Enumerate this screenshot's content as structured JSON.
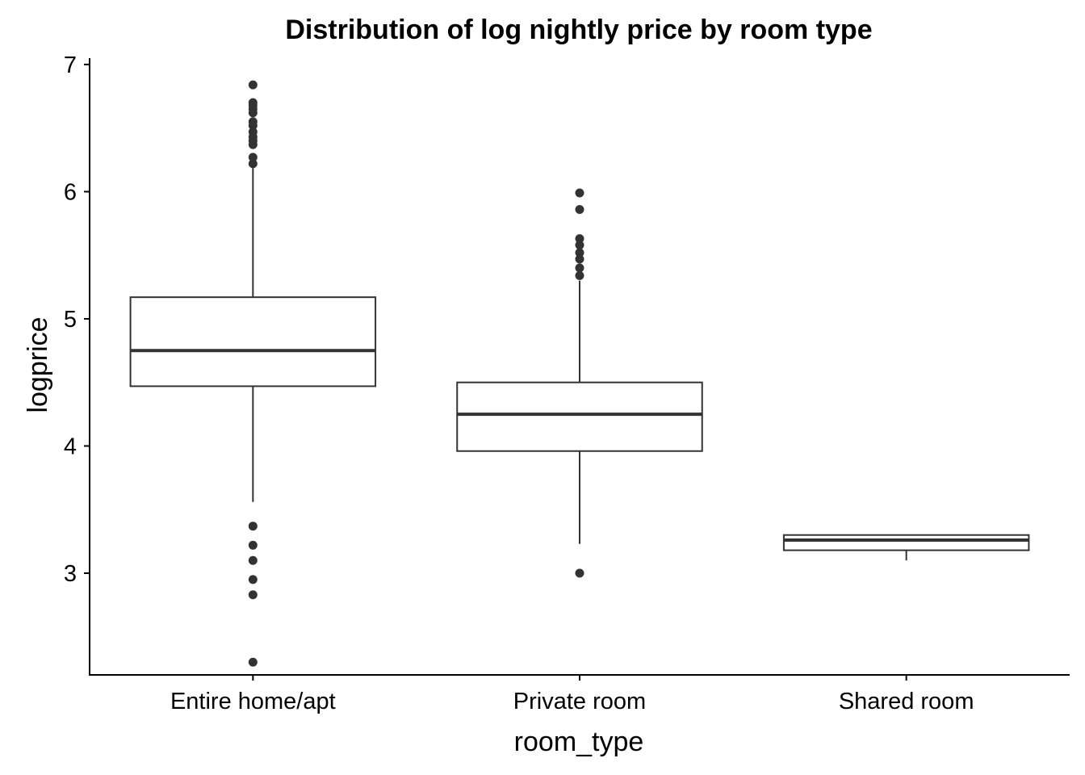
{
  "chart_data": {
    "type": "boxplot",
    "title": "Distribution of log nightly price by room type",
    "xlabel": "room_type",
    "ylabel": "logprice",
    "ylim": [
      2.2,
      7.05
    ],
    "yticks": [
      3,
      4,
      5,
      6,
      7
    ],
    "categories": [
      "Entire home/apt",
      "Private room",
      "Shared room"
    ],
    "boxes": [
      {
        "category": "Entire home/apt",
        "whisker_low": 3.56,
        "q1": 4.47,
        "median": 4.75,
        "q3": 5.17,
        "whisker_high": 6.2,
        "outliers": [
          6.84,
          6.7,
          6.68,
          6.65,
          6.62,
          6.55,
          6.52,
          6.47,
          6.43,
          6.4,
          6.37,
          6.27,
          6.22,
          3.37,
          3.22,
          3.1,
          2.95,
          2.83,
          2.3
        ]
      },
      {
        "category": "Private room",
        "whisker_low": 3.23,
        "q1": 3.96,
        "median": 4.25,
        "q3": 4.5,
        "whisker_high": 5.3,
        "outliers": [
          5.99,
          5.86,
          5.63,
          5.58,
          5.52,
          5.47,
          5.4,
          5.34,
          3.0
        ]
      },
      {
        "category": "Shared room",
        "whisker_low": 3.1,
        "q1": 3.18,
        "median": 3.26,
        "q3": 3.3,
        "whisker_high": 3.3,
        "outliers": []
      }
    ],
    "grid": false,
    "legend": "none"
  }
}
